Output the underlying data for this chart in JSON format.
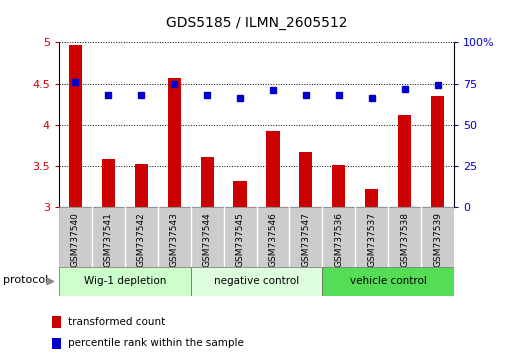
{
  "title": "GDS5185 / ILMN_2605512",
  "samples": [
    "GSM737540",
    "GSM737541",
    "GSM737542",
    "GSM737543",
    "GSM737544",
    "GSM737545",
    "GSM737546",
    "GSM737547",
    "GSM737536",
    "GSM737537",
    "GSM737538",
    "GSM737539"
  ],
  "bar_values": [
    4.97,
    3.59,
    3.52,
    4.57,
    3.61,
    3.32,
    3.92,
    3.67,
    3.51,
    3.22,
    4.12,
    4.35
  ],
  "dot_values": [
    76,
    68,
    68,
    75,
    68,
    66,
    71,
    68,
    68,
    66,
    72,
    74
  ],
  "bar_color": "#cc0000",
  "dot_color": "#0000cc",
  "ylim_left": [
    3,
    5
  ],
  "ylim_right": [
    0,
    100
  ],
  "yticks_left": [
    3,
    3.5,
    4,
    4.5,
    5
  ],
  "yticks_right": [
    0,
    25,
    50,
    75,
    100
  ],
  "ytick_labels_left": [
    "3",
    "3.5",
    "4",
    "4.5",
    "5"
  ],
  "ytick_labels_right": [
    "0",
    "25",
    "50",
    "75",
    "100%"
  ],
  "groups": [
    {
      "label": "Wig-1 depletion",
      "start": 0,
      "end": 3,
      "color": "#ccffcc"
    },
    {
      "label": "negative control",
      "start": 4,
      "end": 7,
      "color": "#ddffdd"
    },
    {
      "label": "vehicle control",
      "start": 8,
      "end": 11,
      "color": "#55dd55"
    }
  ],
  "protocol_label": "protocol",
  "legend_bar_label": "transformed count",
  "legend_dot_label": "percentile rank within the sample",
  "sample_bg_color": "#cccccc",
  "bar_width": 0.4
}
